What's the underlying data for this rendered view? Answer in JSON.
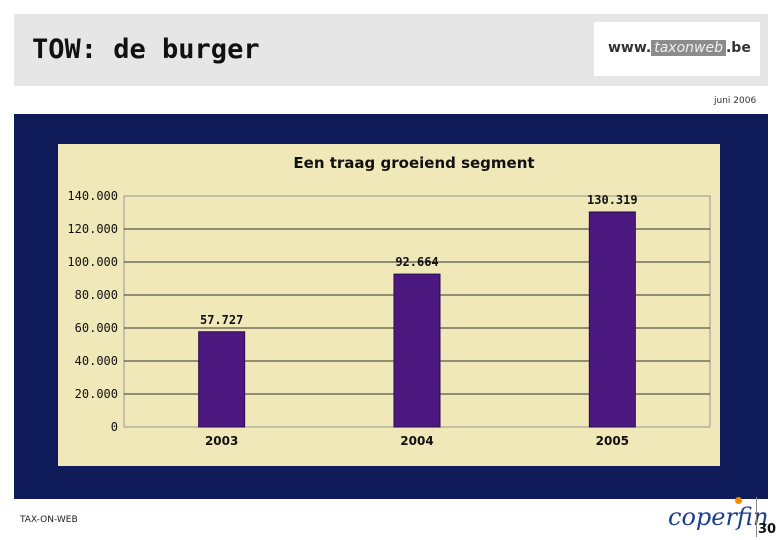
{
  "header": {
    "title": "TOW: de burger",
    "logo": {
      "prefix": "www.",
      "middle": "taxonweb",
      "suffix": ".be"
    }
  },
  "date": "juni 2006",
  "footer": {
    "left_label": "TAX-ON-WEB",
    "brand": "coperfin",
    "page_number": "30"
  },
  "colors": {
    "panel": "#0f1c59",
    "chart_background": "#f0e8b8",
    "bar": "#4b1880"
  },
  "chart_data": {
    "type": "bar",
    "title": "Een traag groeiend segment",
    "categories": [
      "2003",
      "2004",
      "2005"
    ],
    "values": [
      57727,
      92664,
      130319
    ],
    "value_labels": [
      "57.727",
      "92.664",
      "130.319"
    ],
    "ylim": [
      0,
      140000
    ],
    "yticks": [
      0,
      20000,
      40000,
      60000,
      80000,
      100000,
      120000,
      140000
    ],
    "ytick_labels": [
      "0",
      "20.000",
      "40.000",
      "60.000",
      "80.000",
      "100.000",
      "120.000",
      "140.000"
    ],
    "xlabel": "",
    "ylabel": "",
    "grid": true,
    "legend": "none"
  }
}
